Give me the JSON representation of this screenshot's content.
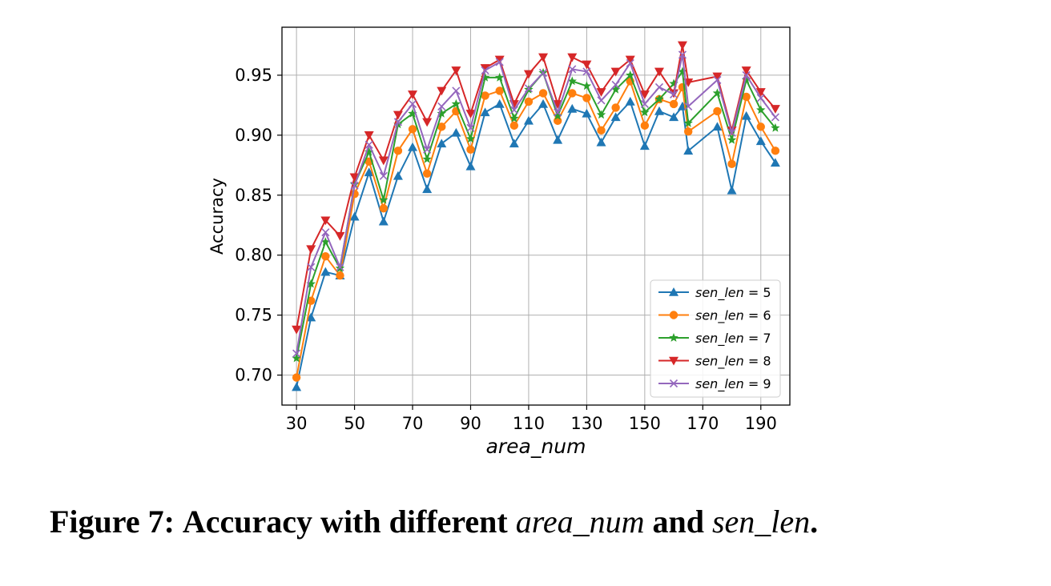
{
  "chart_data": {
    "type": "line",
    "xlabel": "area_num",
    "ylabel": "Accuracy",
    "xlim": [
      25,
      200
    ],
    "ylim": [
      0.675,
      0.99
    ],
    "xticks": [
      30,
      50,
      70,
      90,
      110,
      130,
      150,
      170,
      190
    ],
    "yticks": [
      0.7,
      0.75,
      0.8,
      0.85,
      0.9,
      0.95
    ],
    "grid": true,
    "legend_position": "lower-right",
    "x": [
      30,
      35,
      40,
      45,
      50,
      55,
      60,
      65,
      70,
      75,
      80,
      85,
      90,
      95,
      100,
      105,
      110,
      115,
      120,
      125,
      130,
      135,
      140,
      145,
      150,
      155,
      160,
      163,
      165,
      175,
      180,
      185,
      190,
      195
    ],
    "series": [
      {
        "name": "sen_len = 5",
        "color": "#1f77b4",
        "marker": "triangle-up",
        "values": [
          0.69,
          0.748,
          0.786,
          0.783,
          0.832,
          0.869,
          0.828,
          0.866,
          0.89,
          0.855,
          0.893,
          0.902,
          0.874,
          0.919,
          0.926,
          0.893,
          0.912,
          0.926,
          0.896,
          0.922,
          0.918,
          0.894,
          0.915,
          0.928,
          0.891,
          0.92,
          0.915,
          0.924,
          0.887,
          0.907,
          0.854,
          0.916,
          0.895,
          0.877
        ]
      },
      {
        "name": "sen_len = 6",
        "color": "#ff7f0e",
        "marker": "circle",
        "values": [
          0.698,
          0.762,
          0.799,
          0.783,
          0.851,
          0.878,
          0.839,
          0.887,
          0.905,
          0.868,
          0.907,
          0.92,
          0.888,
          0.933,
          0.937,
          0.908,
          0.928,
          0.935,
          0.912,
          0.935,
          0.931,
          0.904,
          0.923,
          0.945,
          0.908,
          0.93,
          0.926,
          0.94,
          0.903,
          0.92,
          0.876,
          0.932,
          0.907,
          0.887
        ]
      },
      {
        "name": "sen_len = 7",
        "color": "#2ca02c",
        "marker": "star",
        "values": [
          0.714,
          0.776,
          0.811,
          0.789,
          0.859,
          0.886,
          0.846,
          0.909,
          0.918,
          0.88,
          0.918,
          0.926,
          0.897,
          0.948,
          0.948,
          0.914,
          0.938,
          0.952,
          0.916,
          0.945,
          0.941,
          0.917,
          0.938,
          0.95,
          0.919,
          0.93,
          0.943,
          0.953,
          0.91,
          0.935,
          0.896,
          0.946,
          0.921,
          0.906
        ]
      },
      {
        "name": "sen_len = 8",
        "color": "#d62728",
        "marker": "triangle-down",
        "values": [
          0.738,
          0.805,
          0.829,
          0.816,
          0.865,
          0.9,
          0.879,
          0.917,
          0.934,
          0.911,
          0.937,
          0.954,
          0.918,
          0.956,
          0.963,
          0.926,
          0.951,
          0.965,
          0.926,
          0.965,
          0.959,
          0.936,
          0.953,
          0.963,
          0.934,
          0.953,
          0.935,
          0.975,
          0.944,
          0.949,
          0.904,
          0.954,
          0.936,
          0.922
        ]
      },
      {
        "name": "sen_len = 9",
        "color": "#9467bd",
        "marker": "x",
        "values": [
          0.718,
          0.79,
          0.819,
          0.79,
          0.858,
          0.892,
          0.866,
          0.911,
          0.926,
          0.888,
          0.924,
          0.937,
          0.906,
          0.954,
          0.961,
          0.921,
          0.939,
          0.952,
          0.919,
          0.955,
          0.953,
          0.929,
          0.942,
          0.96,
          0.926,
          0.94,
          0.934,
          0.967,
          0.924,
          0.946,
          0.902,
          0.95,
          0.931,
          0.915
        ]
      }
    ]
  },
  "caption": {
    "label": "Figure 7:",
    "text_a": "Accuracy with different",
    "var_a": "area_num",
    "text_b": "and",
    "var_b": "sen_len",
    "end": "."
  }
}
